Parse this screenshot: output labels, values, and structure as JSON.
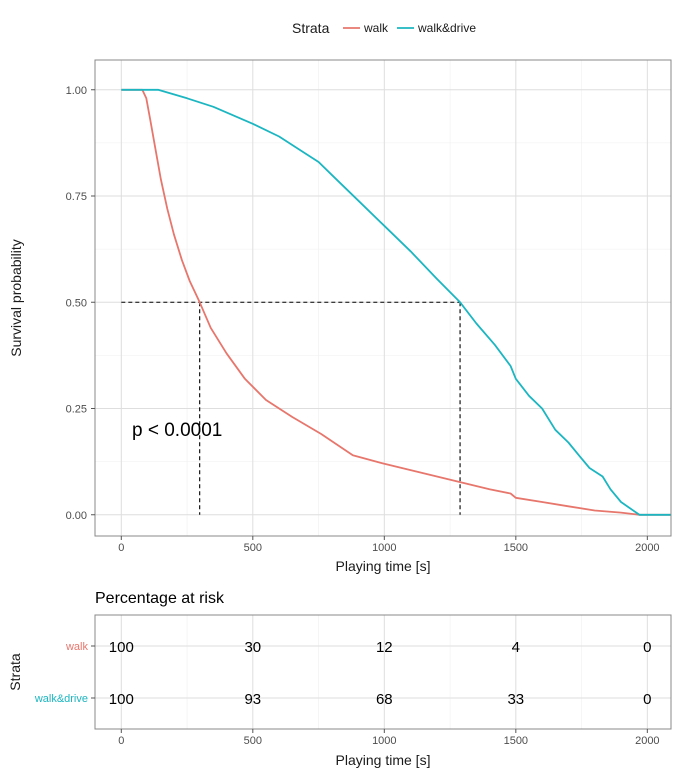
{
  "chart_data": [
    {
      "type": "line",
      "subtype": "kaplan-meier survival curve",
      "legend_title": "Strata",
      "legend_position": "top",
      "xlabel": "Playing time [s]",
      "ylabel": "Survival probability",
      "xlim": [
        -100,
        2090
      ],
      "ylim": [
        -0.05,
        1.07
      ],
      "x_ticks": [
        0,
        500,
        1000,
        1500,
        2000
      ],
      "y_ticks": [
        0.0,
        0.25,
        0.5,
        0.75,
        1.0
      ],
      "y_tick_labels": [
        "0.00",
        "0.25",
        "0.50",
        "0.75",
        "1.00"
      ],
      "grid": true,
      "annotation": "p < 0.0001",
      "median_lines": [
        {
          "series": "walk",
          "x": 298,
          "y": 0.5
        },
        {
          "series": "walk&drive",
          "x": 1288,
          "y": 0.5
        }
      ],
      "series": [
        {
          "name": "walk",
          "color": "#E7766C",
          "x": [
            0,
            80,
            95,
            110,
            130,
            150,
            175,
            200,
            230,
            260,
            298,
            340,
            400,
            470,
            550,
            650,
            760,
            880,
            1000,
            1100,
            1200,
            1300,
            1400,
            1480,
            1500,
            1600,
            1700,
            1800,
            1900,
            1970,
            2000,
            2090
          ],
          "y": [
            1.0,
            1.0,
            0.98,
            0.93,
            0.86,
            0.79,
            0.72,
            0.66,
            0.6,
            0.55,
            0.5,
            0.44,
            0.38,
            0.32,
            0.27,
            0.23,
            0.19,
            0.14,
            0.12,
            0.105,
            0.09,
            0.075,
            0.06,
            0.05,
            0.04,
            0.03,
            0.02,
            0.01,
            0.005,
            0.0,
            0.0,
            0.0
          ]
        },
        {
          "name": "walk&drive",
          "color": "#1BB6C1",
          "x": [
            0,
            140,
            250,
            350,
            500,
            600,
            700,
            750,
            800,
            900,
            1000,
            1100,
            1200,
            1288,
            1350,
            1420,
            1480,
            1500,
            1550,
            1600,
            1650,
            1700,
            1740,
            1780,
            1830,
            1860,
            1900,
            1970,
            2000,
            2090
          ],
          "y": [
            1.0,
            1.0,
            0.98,
            0.96,
            0.92,
            0.89,
            0.85,
            0.83,
            0.8,
            0.74,
            0.68,
            0.62,
            0.555,
            0.5,
            0.45,
            0.4,
            0.35,
            0.32,
            0.28,
            0.25,
            0.2,
            0.17,
            0.14,
            0.11,
            0.09,
            0.06,
            0.03,
            0.0,
            0.0,
            0.0
          ]
        }
      ]
    },
    {
      "type": "table",
      "title": "Percentage at risk",
      "xlabel": "Playing time [s]",
      "ylabel": "Strata",
      "x_ticks": [
        0,
        500,
        1000,
        1500,
        2000
      ],
      "rows": [
        {
          "name": "walk",
          "color": "#E7766C",
          "values": [
            100,
            30,
            12,
            4,
            0
          ]
        },
        {
          "name": "walk&drive",
          "color": "#1BB6C1",
          "values": [
            100,
            93,
            68,
            33,
            0
          ]
        }
      ]
    }
  ]
}
